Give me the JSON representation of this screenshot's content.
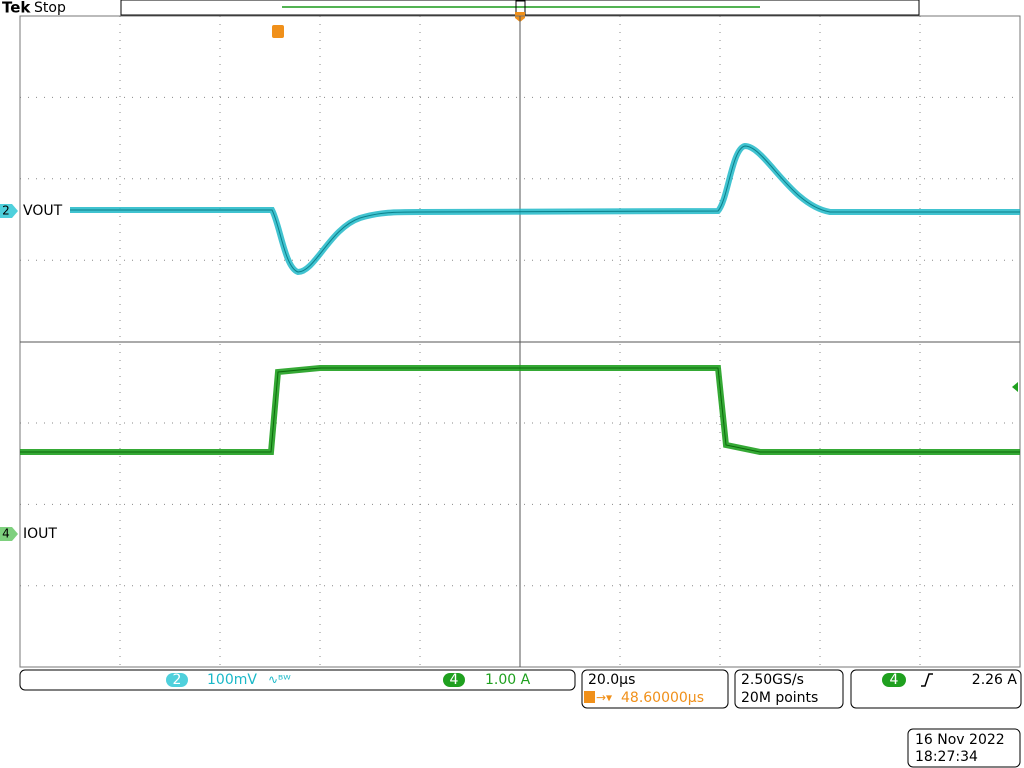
{
  "header": {
    "brand": "Tek",
    "status": "Stop"
  },
  "channels": [
    {
      "number": "2",
      "label": "VOUT",
      "scale": "100mV"
    },
    {
      "number": "4",
      "label": "IOUT",
      "scale": "1.00 A"
    }
  ],
  "timebase": {
    "scale": "20.0µs",
    "trigger_position": "48.60000µs"
  },
  "acquisition": {
    "sample_rate": "2.50GS/s",
    "record_length": "20M points"
  },
  "trigger": {
    "source": "4",
    "level": "2.26 A"
  },
  "timestamp": {
    "date": "16 Nov 2022",
    "time": "18:27:34"
  }
}
